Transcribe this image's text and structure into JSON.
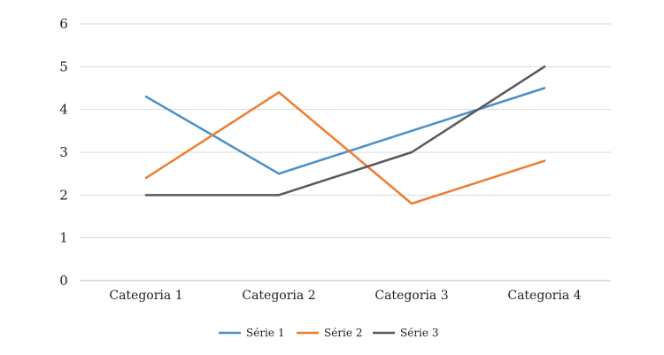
{
  "chart_data": {
    "type": "line",
    "categories": [
      "Categoria 1",
      "Categoria 2",
      "Categoria 3",
      "Categoria 4"
    ],
    "series": [
      {
        "name": "Série 1",
        "values": [
          4.3,
          2.5,
          3.5,
          4.5
        ],
        "color": "#4a90c8"
      },
      {
        "name": "Série 2",
        "values": [
          2.4,
          4.4,
          1.8,
          2.8
        ],
        "color": "#ed7d31"
      },
      {
        "name": "Série 3",
        "values": [
          2.0,
          2.0,
          3.0,
          5.0
        ],
        "color": "#595959"
      }
    ],
    "ylim": [
      0,
      6
    ],
    "yticks": [
      "0",
      "1",
      "2",
      "3",
      "4",
      "5",
      "6"
    ],
    "grid": true,
    "legend_position": "bottom"
  }
}
